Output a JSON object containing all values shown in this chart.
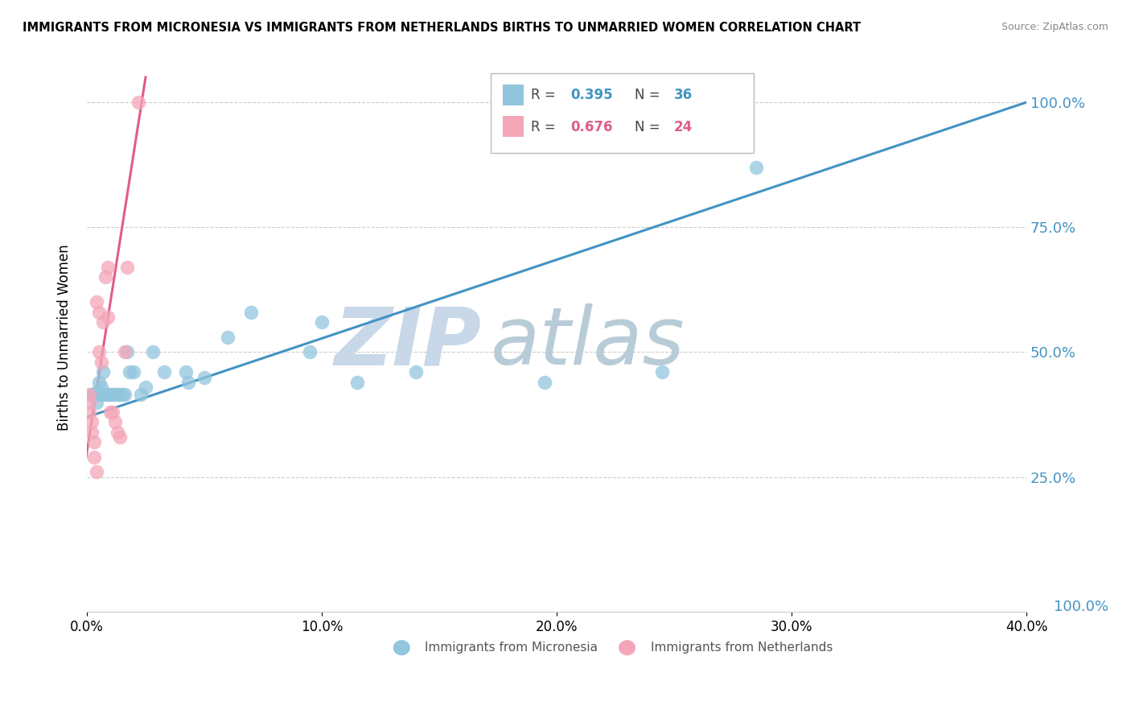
{
  "title": "IMMIGRANTS FROM MICRONESIA VS IMMIGRANTS FROM NETHERLANDS BIRTHS TO UNMARRIED WOMEN CORRELATION CHART",
  "source": "Source: ZipAtlas.com",
  "ylabel": "Births to Unmarried Women",
  "legend_blue_r": "0.395",
  "legend_blue_n": "36",
  "legend_pink_r": "0.676",
  "legend_pink_n": "24",
  "legend_label_blue": "Immigrants from Micronesia",
  "legend_label_pink": "Immigrants from Netherlands",
  "xlim": [
    0.0,
    0.4
  ],
  "ylim": [
    -0.02,
    1.08
  ],
  "xtick_labels": [
    "0.0%",
    "",
    "",
    "",
    "10.0%",
    "",
    "",
    "",
    "20.0%",
    "",
    "",
    "",
    "30.0%",
    "",
    "",
    "",
    "40.0%"
  ],
  "xtick_values": [
    0.0,
    0.025,
    0.05,
    0.075,
    0.1,
    0.125,
    0.15,
    0.175,
    0.2,
    0.225,
    0.25,
    0.275,
    0.3,
    0.325,
    0.35,
    0.375,
    0.4
  ],
  "ytick_values": [
    0.25,
    0.5,
    0.75,
    1.0
  ],
  "ytick_labels": [
    "25.0%",
    "50.0%",
    "75.0%",
    "100.0%"
  ],
  "color_blue": "#92c5de",
  "color_pink": "#f4a6b8",
  "line_blue": "#4393c3",
  "line_pink": "#e05c8a",
  "ytick_color": "#4393c3",
  "watermark_zip": "ZIP",
  "watermark_atlas": "atlas",
  "watermark_color_zip": "#c5d5e5",
  "watermark_color_atlas": "#b0c8d8",
  "blue_x": [
    0.002,
    0.003,
    0.004,
    0.004,
    0.005,
    0.006,
    0.006,
    0.007,
    0.008,
    0.009,
    0.01,
    0.011,
    0.012,
    0.013,
    0.014,
    0.015,
    0.016,
    0.017,
    0.018,
    0.02,
    0.023,
    0.025,
    0.028,
    0.033,
    0.042,
    0.043,
    0.05,
    0.06,
    0.07,
    0.095,
    0.1,
    0.115,
    0.14,
    0.195,
    0.245,
    0.285
  ],
  "blue_y": [
    0.415,
    0.415,
    0.42,
    0.4,
    0.44,
    0.415,
    0.43,
    0.46,
    0.415,
    0.415,
    0.415,
    0.415,
    0.415,
    0.415,
    0.415,
    0.415,
    0.415,
    0.5,
    0.46,
    0.46,
    0.415,
    0.43,
    0.5,
    0.46,
    0.46,
    0.44,
    0.45,
    0.53,
    0.58,
    0.5,
    0.56,
    0.44,
    0.46,
    0.44,
    0.46,
    0.87
  ],
  "pink_x": [
    0.001,
    0.001,
    0.001,
    0.002,
    0.002,
    0.003,
    0.003,
    0.004,
    0.004,
    0.005,
    0.005,
    0.006,
    0.007,
    0.008,
    0.009,
    0.009,
    0.01,
    0.011,
    0.012,
    0.013,
    0.014,
    0.016,
    0.017,
    0.022
  ],
  "pink_y": [
    0.415,
    0.4,
    0.38,
    0.36,
    0.34,
    0.32,
    0.29,
    0.26,
    0.6,
    0.58,
    0.5,
    0.48,
    0.56,
    0.65,
    0.57,
    0.67,
    0.38,
    0.38,
    0.36,
    0.34,
    0.33,
    0.5,
    0.67,
    1.0
  ],
  "blue_trend_x": [
    0.0,
    0.4
  ],
  "blue_trend_y": [
    0.37,
    1.0
  ],
  "pink_trend_x": [
    -0.001,
    0.025
  ],
  "pink_trend_y": [
    0.27,
    1.05
  ]
}
